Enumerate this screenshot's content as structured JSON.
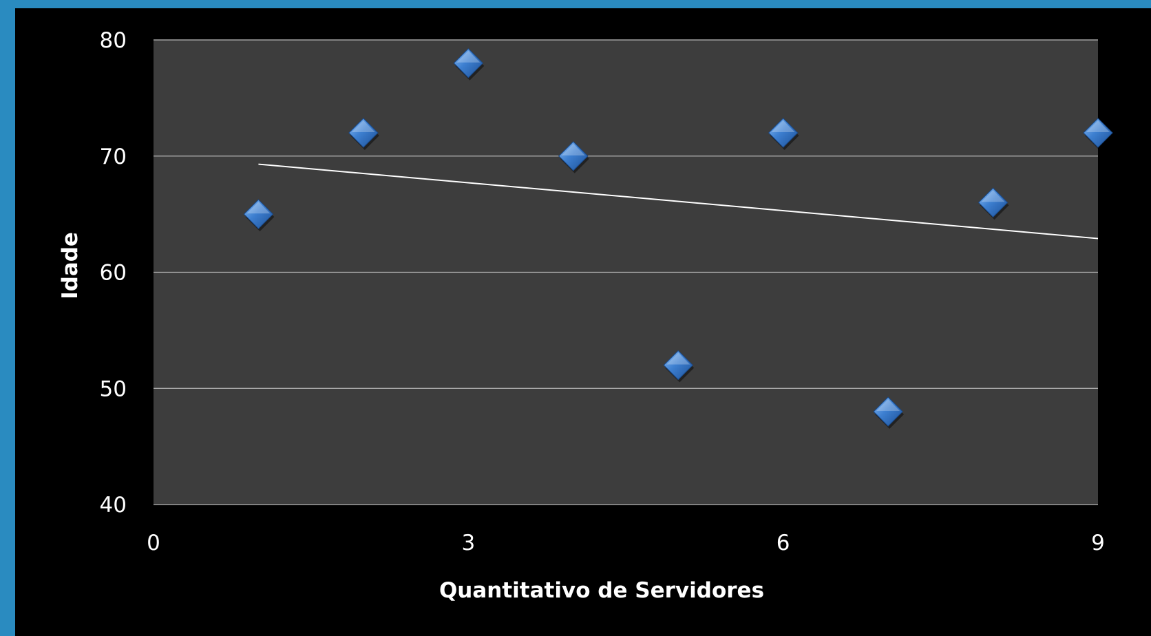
{
  "chart_data": {
    "type": "scatter",
    "title": "",
    "xlabel": "Quantitativo  de Servidores",
    "ylabel": "Idade",
    "xlim": [
      0,
      9
    ],
    "ylim": [
      40,
      80
    ],
    "x_ticks": [
      "0",
      "3",
      "6",
      "9"
    ],
    "y_ticks": [
      "40",
      "50",
      "60",
      "70",
      "80"
    ],
    "grid": true,
    "legend": "none",
    "series": [
      {
        "x": [
          1,
          2,
          3,
          4,
          5,
          6,
          7,
          8,
          9
        ],
        "y": [
          65,
          72,
          78,
          70,
          52,
          72,
          48,
          66,
          72
        ],
        "color": "#3d7fd0"
      }
    ],
    "trendline": {
      "type": "linear",
      "x": [
        1,
        9
      ],
      "y": [
        69.3,
        62.9
      ],
      "color": "#ffffff"
    },
    "plot_background": "#3d3d3d",
    "background": "#000000"
  }
}
